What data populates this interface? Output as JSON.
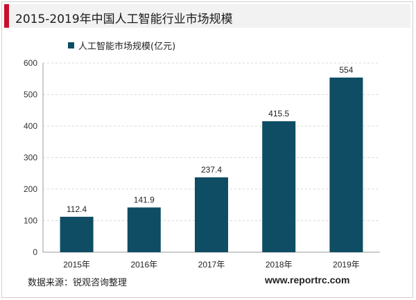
{
  "header": {
    "title": "2015-2019年中国人工智能行业市场规模"
  },
  "footer": {
    "source": "数据来源：锐观咨询整理",
    "website": "www.reportrc.com"
  },
  "colors": {
    "bar": "#0e4d64",
    "accent": "#c8102e",
    "grid": "#d9d9d9"
  },
  "chart_data": {
    "type": "bar",
    "categories": [
      "2015年",
      "2016年",
      "2017年",
      "2018年",
      "2019年"
    ],
    "series": [
      {
        "name": "人工智能市场规模(亿元)",
        "values": [
          112.4,
          141.9,
          237.4,
          415.5,
          554
        ]
      }
    ],
    "data_labels": [
      "112.4",
      "141.9",
      "237.4",
      "415.5",
      "554"
    ],
    "ylim": [
      0,
      600
    ],
    "yticks": [
      0,
      100,
      200,
      300,
      400,
      500,
      600
    ],
    "grid": true,
    "legend_position": "top-left"
  }
}
